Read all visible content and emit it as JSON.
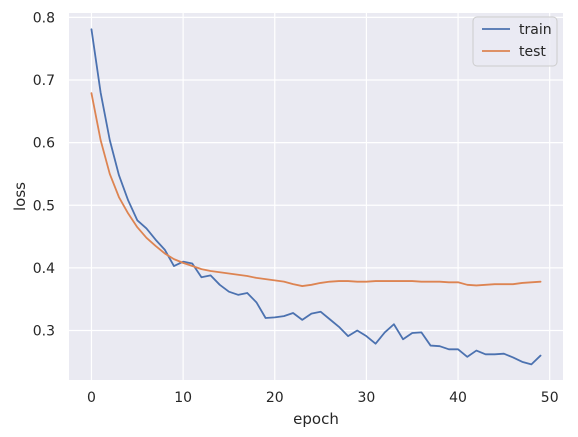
{
  "chart_data": {
    "type": "line",
    "title": "",
    "xlabel": "epoch",
    "ylabel": "loss",
    "xlim": [
      -2.45,
      51.45
    ],
    "ylim": [
      0.221,
      0.807
    ],
    "xticks": [
      0,
      10,
      20,
      30,
      40,
      50
    ],
    "yticks": [
      0.3,
      0.4,
      0.5,
      0.6,
      0.7,
      0.8
    ],
    "grid": true,
    "background": "#eaeaf2",
    "legend_position": "top-right",
    "x": [
      0,
      1,
      2,
      3,
      4,
      5,
      6,
      7,
      8,
      9,
      10,
      11,
      12,
      13,
      14,
      15,
      16,
      17,
      18,
      19,
      20,
      21,
      22,
      23,
      24,
      25,
      26,
      27,
      28,
      29,
      30,
      31,
      32,
      33,
      34,
      35,
      36,
      37,
      38,
      39,
      40,
      41,
      42,
      43,
      44,
      45,
      46,
      47,
      48,
      49
    ],
    "series": [
      {
        "name": "train",
        "color": "#4c72b0",
        "values": [
          0.781,
          0.68,
          0.604,
          0.548,
          0.508,
          0.476,
          0.463,
          0.445,
          0.429,
          0.403,
          0.41,
          0.407,
          0.385,
          0.388,
          0.373,
          0.362,
          0.357,
          0.36,
          0.345,
          0.32,
          0.321,
          0.323,
          0.328,
          0.317,
          0.327,
          0.33,
          0.318,
          0.306,
          0.291,
          0.3,
          0.291,
          0.279,
          0.297,
          0.31,
          0.286,
          0.296,
          0.297,
          0.276,
          0.275,
          0.27,
          0.27,
          0.258,
          0.268,
          0.262,
          0.262,
          0.263,
          0.257,
          0.25,
          0.246,
          0.26
        ]
      },
      {
        "name": "test",
        "color": "#dd8452",
        "values": [
          0.679,
          0.604,
          0.55,
          0.513,
          0.487,
          0.465,
          0.448,
          0.435,
          0.423,
          0.414,
          0.408,
          0.403,
          0.398,
          0.395,
          0.393,
          0.391,
          0.389,
          0.387,
          0.384,
          0.382,
          0.38,
          0.378,
          0.374,
          0.371,
          0.373,
          0.376,
          0.378,
          0.379,
          0.379,
          0.378,
          0.378,
          0.379,
          0.379,
          0.379,
          0.379,
          0.379,
          0.378,
          0.378,
          0.378,
          0.377,
          0.377,
          0.373,
          0.372,
          0.373,
          0.374,
          0.374,
          0.374,
          0.376,
          0.377,
          0.378
        ]
      }
    ]
  }
}
